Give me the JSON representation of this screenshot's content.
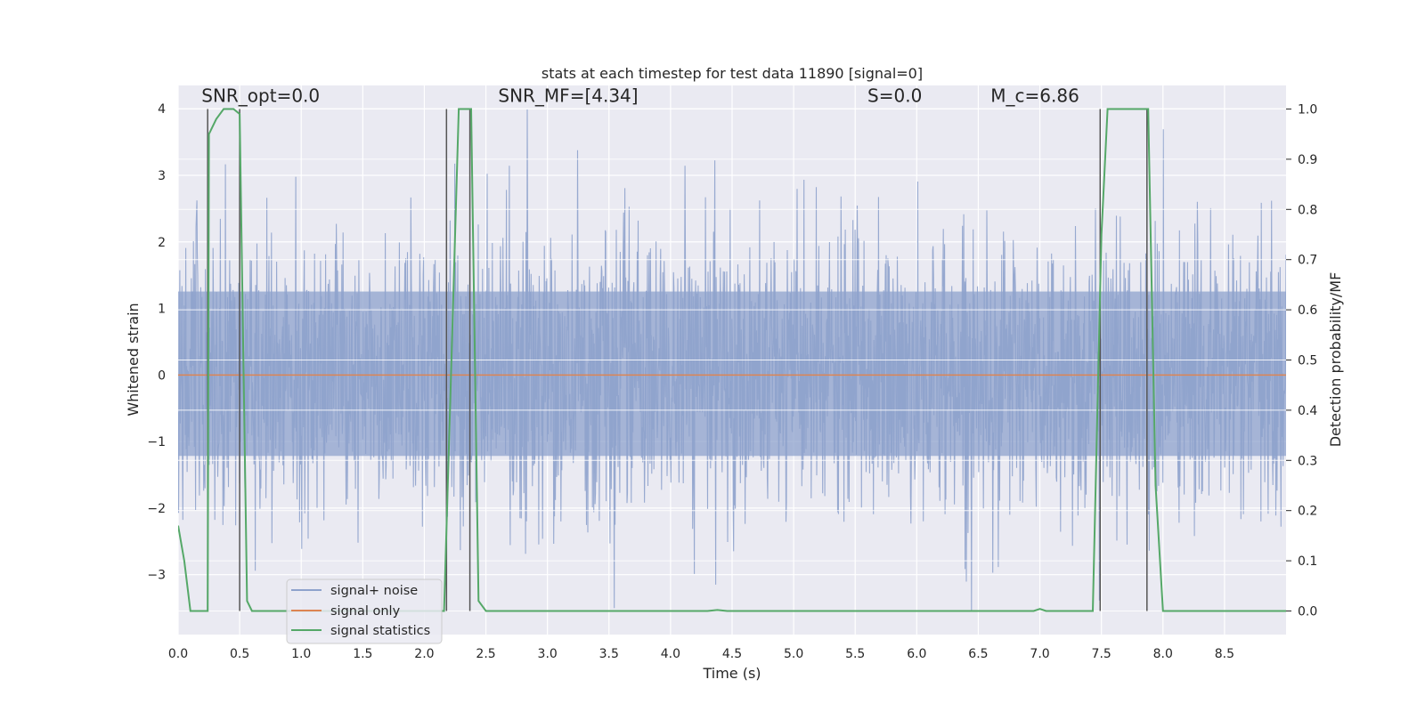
{
  "chart_data": {
    "type": "line",
    "title": "stats at each timestep for test data 11890 [signal=0]",
    "xlabel": "Time (s)",
    "ylabel": "Whitened strain",
    "ylabel_right": "Detection probability/MF",
    "xlim": [
      0.0,
      9.0
    ],
    "ylim": [
      -3.9,
      4.35
    ],
    "ylim_right": [
      -0.047,
      1.047
    ],
    "grid": true,
    "legend_position": "lower-left",
    "x_ticks": [
      "0.0",
      "0.5",
      "1.0",
      "1.5",
      "2.0",
      "2.5",
      "3.0",
      "3.5",
      "4.0",
      "4.5",
      "5.0",
      "5.5",
      "6.0",
      "6.5",
      "7.0",
      "7.5",
      "8.0",
      "8.5"
    ],
    "x_tick_values": [
      0.0,
      0.5,
      1.0,
      1.5,
      2.0,
      2.5,
      3.0,
      3.5,
      4.0,
      4.5,
      5.0,
      5.5,
      6.0,
      6.5,
      7.0,
      7.5,
      8.0,
      8.5
    ],
    "y_ticks": [
      "4",
      "3",
      "2",
      "1",
      "0",
      "−1",
      "−2",
      "−3"
    ],
    "y_tick_values": [
      4,
      3,
      2,
      1,
      0,
      -1,
      -2,
      -3
    ],
    "y_ticks_right": [
      "1.0",
      "0.9",
      "0.8",
      "0.7",
      "0.6",
      "0.5",
      "0.4",
      "0.3",
      "0.2",
      "0.1",
      "0.0"
    ],
    "y_tick_values_right": [
      1.0,
      0.9,
      0.8,
      0.7,
      0.6,
      0.5,
      0.4,
      0.3,
      0.2,
      0.1,
      0.0
    ],
    "annotations": [
      {
        "id": "snr-opt",
        "text": "SNR_opt=0.0",
        "x": 0.19,
        "y": 4.1
      },
      {
        "id": "snr-mf",
        "text": "SNR_MF=[4.34]",
        "x": 2.6,
        "y": 4.1
      },
      {
        "id": "s",
        "text": "S=0.0",
        "x": 5.6,
        "y": 4.1
      },
      {
        "id": "mc",
        "text": "M_c=6.86",
        "x": 6.6,
        "y": 4.1
      }
    ],
    "vertical_markers": [
      0.24,
      0.5,
      2.18,
      2.37,
      7.49,
      7.87
    ],
    "series": [
      {
        "name": "signal+ noise",
        "color": "#8ea2cc",
        "axis": "left",
        "description": "whitened strain noise, envelope approx ±3.5",
        "envelope": {
          "x": [
            0.0,
            9.0
          ],
          "upper": 3.3,
          "lower": -3.2
        }
      },
      {
        "name": "signal only",
        "color": "#dd8452",
        "axis": "left",
        "x": [
          0.0,
          9.0
        ],
        "y": [
          0.0,
          0.0
        ]
      },
      {
        "name": "signal statistics",
        "color": "#55a868",
        "axis": "right",
        "x": [
          0.0,
          0.05,
          0.1,
          0.24,
          0.25,
          0.31,
          0.37,
          0.45,
          0.5,
          0.56,
          0.6,
          2.16,
          2.22,
          2.28,
          2.38,
          2.44,
          2.5,
          4.3,
          4.38,
          4.46,
          6.95,
          7.0,
          7.05,
          7.43,
          7.5,
          7.55,
          7.6,
          7.88,
          7.94,
          8.0,
          9.0
        ],
        "y": [
          0.17,
          0.1,
          0.0,
          0.0,
          0.95,
          0.98,
          1.0,
          1.0,
          0.99,
          0.02,
          0.0,
          0.0,
          0.5,
          1.0,
          1.0,
          0.02,
          0.0,
          0.0,
          0.002,
          0.0,
          0.0,
          0.004,
          0.0,
          0.0,
          0.75,
          1.0,
          1.0,
          1.0,
          0.25,
          0.0,
          0.0
        ]
      }
    ]
  }
}
